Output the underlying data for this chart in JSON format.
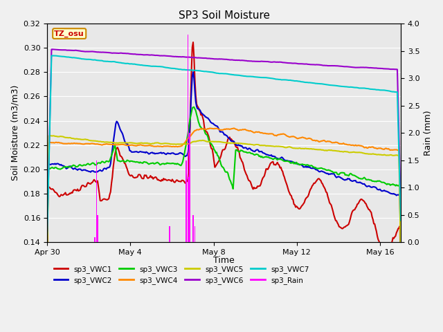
{
  "title": "SP3 Soil Moisture",
  "xlabel": "Time",
  "ylabel_left": "Soil Moisture (m3/m3)",
  "ylabel_right": "Rain (mm)",
  "ylim_left": [
    0.14,
    0.32
  ],
  "ylim_right": [
    0.0,
    4.0
  ],
  "yticks_left": [
    0.14,
    0.16,
    0.18,
    0.2,
    0.22,
    0.24,
    0.26,
    0.28,
    0.3,
    0.32
  ],
  "yticks_right": [
    0.0,
    0.5,
    1.0,
    1.5,
    2.0,
    2.5,
    3.0,
    3.5,
    4.0
  ],
  "xtick_positions": [
    0,
    4,
    8,
    12,
    16
  ],
  "xtick_labels": [
    "Apr 30",
    "May 4",
    "May 8",
    "May 12",
    "May 16"
  ],
  "xlim": [
    0,
    17
  ],
  "bg_color": "#e8e8e8",
  "fig_bg": "#f0f0f0",
  "timezone_label": "TZ_osu",
  "series_colors": {
    "sp3_VWC1": "#cc0000",
    "sp3_VWC2": "#0000cc",
    "sp3_VWC3": "#00cc00",
    "sp3_VWC4": "#ff8800",
    "sp3_VWC5": "#cccc00",
    "sp3_VWC6": "#9900cc",
    "sp3_VWC7": "#00cccc",
    "sp3_Rain": "#ff00ff"
  },
  "rain_events": [
    {
      "day": 2.3,
      "mm": 0.1
    },
    {
      "day": 2.38,
      "mm": 1.5
    },
    {
      "day": 2.42,
      "mm": 0.5
    },
    {
      "day": 5.9,
      "mm": 0.3
    },
    {
      "day": 6.7,
      "mm": 1.5
    },
    {
      "day": 6.75,
      "mm": 3.8
    },
    {
      "day": 6.8,
      "mm": 1.2
    },
    {
      "day": 6.85,
      "mm": 2.0
    },
    {
      "day": 7.0,
      "mm": 0.5
    },
    {
      "day": 7.1,
      "mm": 0.3
    }
  ]
}
